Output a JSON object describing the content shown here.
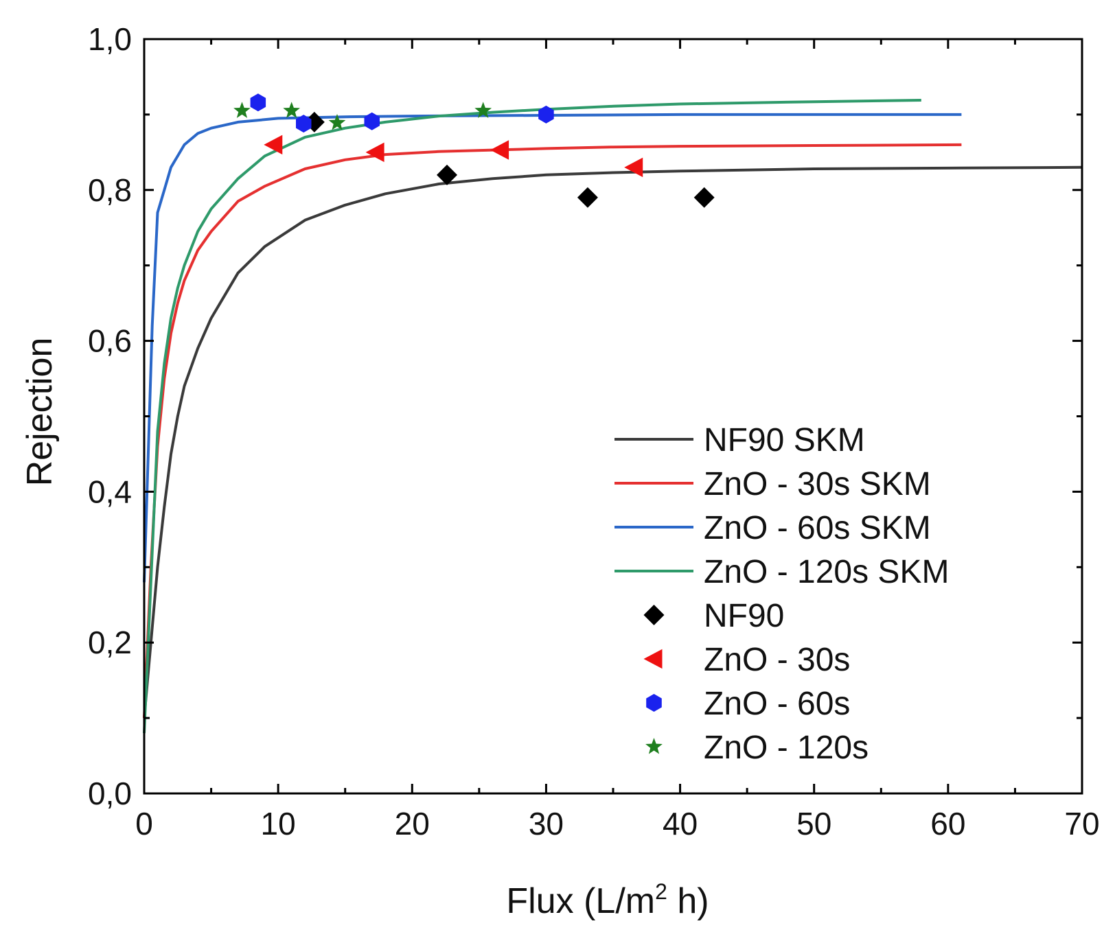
{
  "chart_data": {
    "type": "scatter",
    "title": "",
    "xlabel": "Flux (L/m",
    "xlabel_sup": "2",
    "xlabel_tail": " h)",
    "ylabel": "Rejection",
    "xlim": [
      0,
      70
    ],
    "ylim": [
      0.0,
      1.0
    ],
    "xticks": [
      0,
      10,
      20,
      30,
      40,
      50,
      60,
      70
    ],
    "xtick_labels": [
      "0",
      "10",
      "20",
      "30",
      "40",
      "50",
      "60",
      "70"
    ],
    "yticks": [
      0.0,
      0.2,
      0.4,
      0.6,
      0.8,
      1.0
    ],
    "ytick_labels": [
      "0,0",
      "0,2",
      "0,4",
      "0,6",
      "0,8",
      "1,0"
    ],
    "grid": false,
    "legend_position": "lower-right",
    "lines": [
      {
        "name": "NF90 SKM",
        "color": "#3a3a3a",
        "x": [
          0,
          0.5,
          1,
          1.5,
          2,
          2.5,
          3,
          4,
          5,
          7,
          9,
          12,
          15,
          18,
          22,
          26,
          30,
          35,
          40,
          50,
          60,
          70
        ],
        "y": [
          0.1,
          0.2,
          0.3,
          0.38,
          0.45,
          0.5,
          0.54,
          0.59,
          0.63,
          0.69,
          0.725,
          0.76,
          0.78,
          0.795,
          0.808,
          0.815,
          0.82,
          0.823,
          0.825,
          0.828,
          0.829,
          0.83
        ]
      },
      {
        "name": "ZnO - 30s SKM",
        "color": "#e53030",
        "x": [
          0,
          0.5,
          1,
          1.5,
          2,
          2.5,
          3,
          4,
          5,
          7,
          9,
          12,
          15,
          18,
          22,
          26,
          30,
          35,
          40,
          50,
          61
        ],
        "y": [
          0.1,
          0.3,
          0.46,
          0.55,
          0.61,
          0.65,
          0.68,
          0.72,
          0.745,
          0.785,
          0.805,
          0.828,
          0.84,
          0.847,
          0.851,
          0.853,
          0.855,
          0.857,
          0.858,
          0.859,
          0.86
        ]
      },
      {
        "name": "ZnO - 60s SKM",
        "color": "#2a67c8",
        "x": [
          0,
          0.3,
          0.6,
          1,
          1.5,
          2,
          3,
          4,
          5,
          7,
          10,
          15,
          20,
          30,
          40,
          50,
          61
        ],
        "y": [
          0.28,
          0.45,
          0.62,
          0.77,
          0.8,
          0.83,
          0.86,
          0.875,
          0.882,
          0.89,
          0.895,
          0.897,
          0.898,
          0.899,
          0.9,
          0.9,
          0.9
        ]
      },
      {
        "name": "ZnO - 120s SKM",
        "color": "#2e9a6a",
        "x": [
          0,
          0.5,
          1,
          1.5,
          2,
          2.5,
          3,
          4,
          5,
          7,
          9,
          12,
          15,
          18,
          22,
          26,
          30,
          35,
          40,
          50,
          58
        ],
        "y": [
          0.08,
          0.28,
          0.48,
          0.57,
          0.63,
          0.67,
          0.7,
          0.745,
          0.775,
          0.815,
          0.845,
          0.87,
          0.882,
          0.89,
          0.898,
          0.903,
          0.907,
          0.911,
          0.914,
          0.917,
          0.919
        ]
      }
    ],
    "series": [
      {
        "name": "NF90",
        "marker": "diamond",
        "color": "#000000",
        "x": [
          12.7,
          22.6,
          33.1,
          41.8
        ],
        "y": [
          0.89,
          0.82,
          0.79,
          0.79
        ]
      },
      {
        "name": "ZnO - 30s",
        "marker": "triangle-left",
        "color": "#ee1111",
        "x": [
          9.7,
          17.3,
          26.6,
          36.6
        ],
        "y": [
          0.86,
          0.85,
          0.853,
          0.83
        ]
      },
      {
        "name": "ZnO - 60s",
        "marker": "hexagon",
        "color": "#1a22ee",
        "x": [
          8.5,
          11.9,
          17.0,
          30.0
        ],
        "y": [
          0.916,
          0.888,
          0.891,
          0.9
        ]
      },
      {
        "name": "ZnO - 120s",
        "marker": "star",
        "color": "#1f7f1f",
        "x": [
          7.3,
          11.0,
          14.4,
          25.3
        ],
        "y": [
          0.905,
          0.905,
          0.889,
          0.905
        ]
      }
    ]
  }
}
